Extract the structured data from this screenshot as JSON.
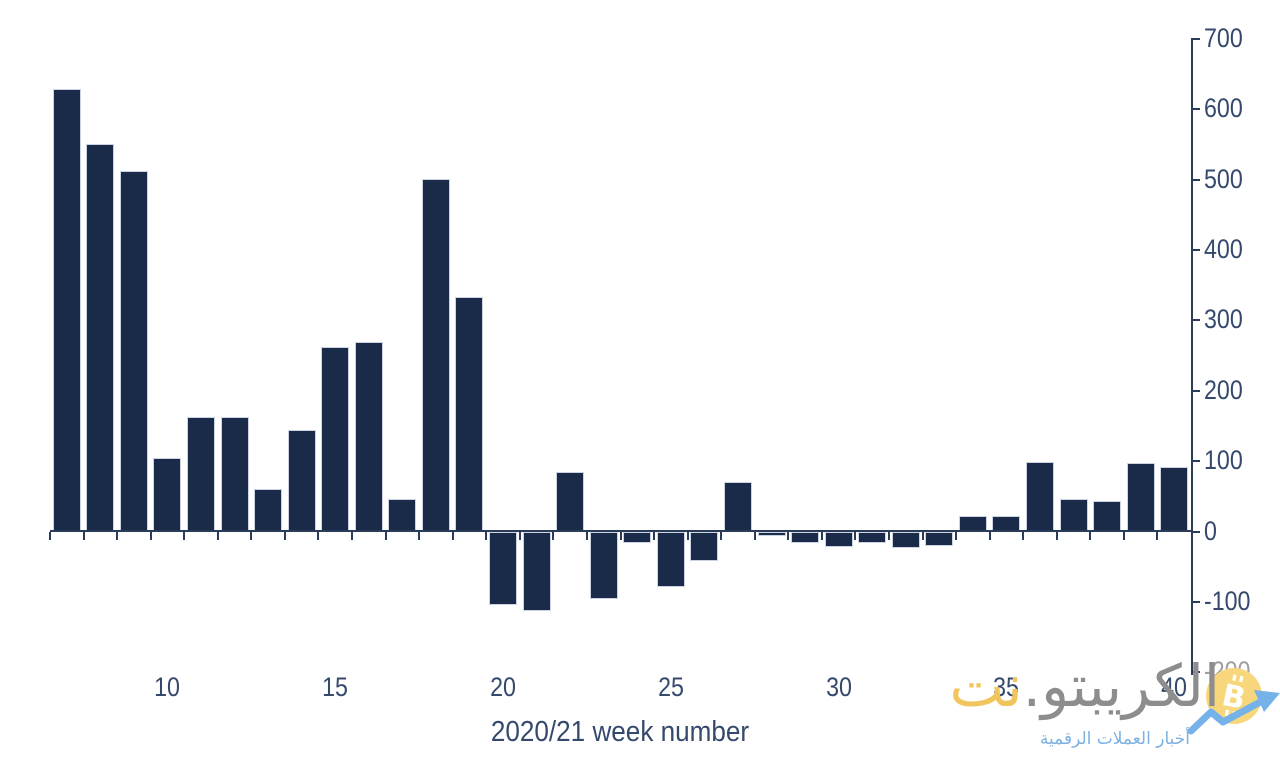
{
  "chart_data": {
    "type": "bar",
    "title": "",
    "xlabel": "2020/21 week number",
    "ylabel": "",
    "weeks": [
      7,
      8,
      9,
      10,
      11,
      12,
      13,
      14,
      15,
      16,
      17,
      18,
      19,
      20,
      21,
      22,
      23,
      24,
      25,
      26,
      27,
      28,
      29,
      30,
      31,
      32,
      33,
      34,
      35,
      36,
      37,
      38,
      39,
      40
    ],
    "values": [
      628,
      550,
      512,
      104,
      162,
      162,
      60,
      144,
      262,
      268,
      46,
      500,
      333,
      -104,
      -112,
      84,
      -95,
      -16,
      -78,
      -41,
      70,
      -5,
      -16,
      -21,
      -16,
      -23,
      -20,
      21,
      21,
      98,
      46,
      43,
      97,
      91
    ],
    "x_tick_labels": [
      10,
      15,
      20,
      25,
      30,
      35,
      40
    ],
    "y_ticks": [
      700,
      600,
      500,
      400,
      300,
      200,
      100,
      0,
      -100,
      -200
    ],
    "ylim": [
      -200,
      700
    ],
    "grid": "off",
    "legend": "none",
    "bar_color": "#1a2a49",
    "bar_edge_color": "#ccd4e1",
    "axis_color": "#2b3c59",
    "label_color": "#35496d",
    "muted_label_color": "#9e9e9e"
  },
  "watermark": {
    "name_gray": "الكريبتو",
    "dot": ".",
    "name_yellow": "نت",
    "tagline": "أخبار العملات الرقمية",
    "gray_color": "#8d8d8d",
    "yellow_color": "#f0c55e",
    "tagline_color": "#7cb1e3",
    "coin_color": "#f8d77c",
    "coin_symbol": "B",
    "arrow_color": "#74b2e9"
  }
}
